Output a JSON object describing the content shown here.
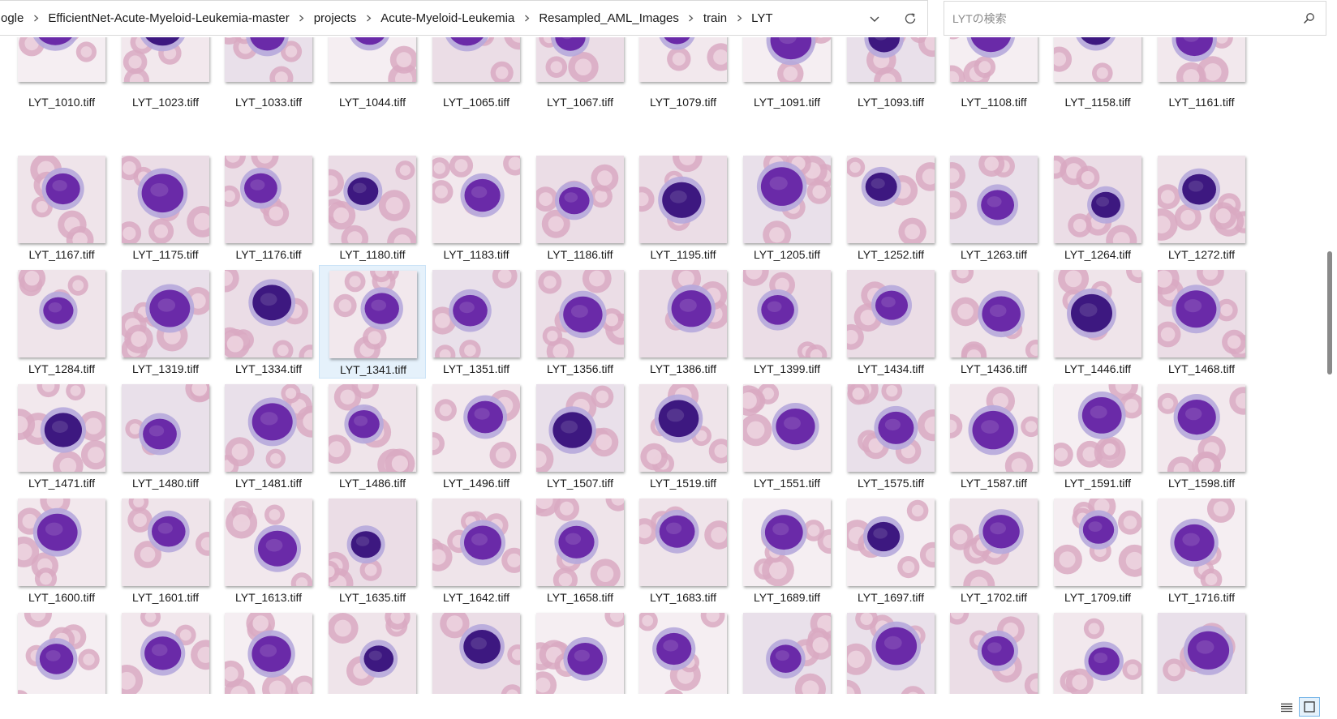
{
  "address_bar": {
    "breadcrumbs": [
      "ogle",
      "EfficientNet-Acute-Myeloid-Leukemia-master",
      "projects",
      "Acute-Myeloid-Leukemia",
      "Resampled_AML_Images",
      "train",
      "LYT"
    ]
  },
  "search": {
    "placeholder": "LYTの検索"
  },
  "view_buttons": {
    "details": "details-view-icon",
    "thumbnails": "large-icons-view-icon"
  },
  "files": [
    [
      "LYT_1010.tiff",
      "LYT_1023.tiff",
      "LYT_1033.tiff",
      "LYT_1044.tiff",
      "LYT_1065.tiff",
      "LYT_1067.tiff",
      "LYT_1079.tiff",
      "LYT_1091.tiff",
      "LYT_1093.tiff",
      "LYT_1108.tiff",
      "LYT_1158.tiff",
      "LYT_1161.tiff"
    ],
    [
      "LYT_1167.tiff",
      "LYT_1175.tiff",
      "LYT_1176.tiff",
      "LYT_1180.tiff",
      "LYT_1183.tiff",
      "LYT_1186.tiff",
      "LYT_1195.tiff",
      "LYT_1205.tiff",
      "LYT_1252.tiff",
      "LYT_1263.tiff",
      "LYT_1264.tiff",
      "LYT_1272.tiff"
    ],
    [
      "LYT_1284.tiff",
      "LYT_1319.tiff",
      "LYT_1334.tiff",
      "LYT_1341.tiff",
      "LYT_1351.tiff",
      "LYT_1356.tiff",
      "LYT_1386.tiff",
      "LYT_1399.tiff",
      "LYT_1434.tiff",
      "LYT_1436.tiff",
      "LYT_1446.tiff",
      "LYT_1468.tiff"
    ],
    [
      "LYT_1471.tiff",
      "LYT_1480.tiff",
      "LYT_1481.tiff",
      "LYT_1486.tiff",
      "LYT_1496.tiff",
      "LYT_1507.tiff",
      "LYT_1519.tiff",
      "LYT_1551.tiff",
      "LYT_1575.tiff",
      "LYT_1587.tiff",
      "LYT_1591.tiff",
      "LYT_1598.tiff"
    ],
    [
      "LYT_1600.tiff",
      "LYT_1601.tiff",
      "LYT_1613.tiff",
      "LYT_1635.tiff",
      "LYT_1642.tiff",
      "LYT_1658.tiff",
      "LYT_1683.tiff",
      "LYT_1689.tiff",
      "LYT_1697.tiff",
      "LYT_1702.tiff",
      "LYT_1709.tiff",
      "LYT_1716.tiff"
    ],
    [
      "",
      "",
      "",
      "",
      "",
      "",
      "",
      "",
      "",
      "",
      "",
      ""
    ]
  ],
  "selected_file": "LYT_1341.tiff",
  "colors": {
    "rbc": "#d9a9c2",
    "rbc_center": "#ecd3df",
    "nucleus": "#6a2aa8",
    "nucleus_dark": "#3d1880",
    "cytoplasm": "#b6a8dc",
    "background": "#f1e7ec"
  }
}
